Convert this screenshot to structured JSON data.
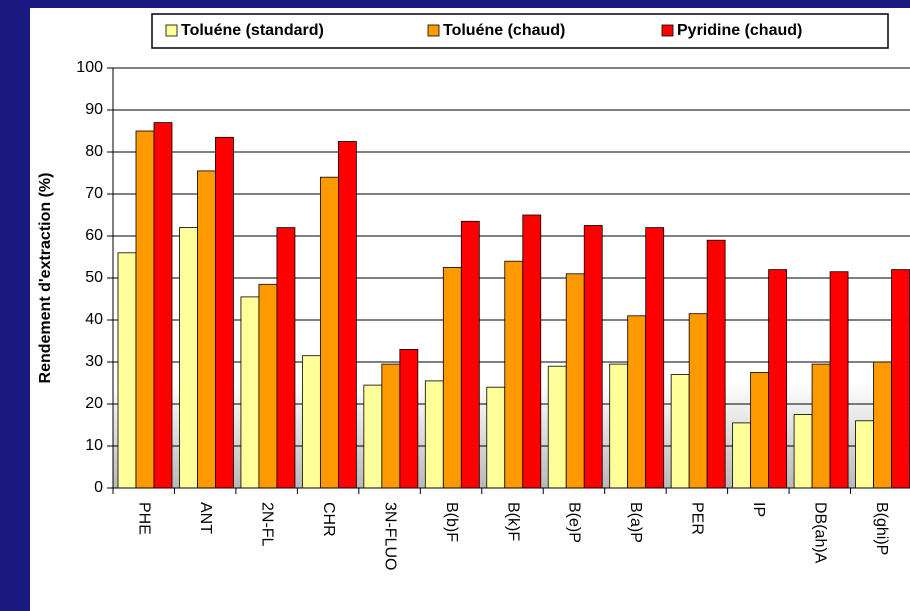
{
  "chart_data": {
    "type": "bar",
    "categories": [
      "PHE",
      "ANT",
      "2N-FL",
      "CHR",
      "3N-FLUO",
      "B(b)F",
      "B(k)F",
      "B(e)P",
      "B(a)P",
      "PER",
      "IP",
      "DB(ah)A",
      "B(ghi)P"
    ],
    "series": [
      {
        "name": "Toluéne (standard)",
        "color": "#ffff99",
        "values": [
          56,
          62,
          45.5,
          31.5,
          24.5,
          25.5,
          24,
          29,
          29.5,
          27,
          15.5,
          17.5,
          16
        ]
      },
      {
        "name": "Toluéne (chaud)",
        "color": "#ff9900",
        "values": [
          85,
          75.5,
          48.5,
          74,
          29.5,
          52.5,
          54,
          51,
          41,
          41.5,
          27.5,
          29.5,
          30
        ]
      },
      {
        "name": "Pyridine (chaud)",
        "color": "#ff0000",
        "values": [
          87,
          83.5,
          62,
          82.5,
          33,
          63.5,
          65,
          62.5,
          62,
          59,
          52,
          51.5,
          52
        ]
      }
    ],
    "y_label": "Rendement d'extraction (%)",
    "ylim": [
      0,
      100
    ],
    "yticks": [
      0,
      10,
      20,
      30,
      40,
      50,
      60,
      70,
      80,
      90,
      100
    ],
    "grid": true
  }
}
